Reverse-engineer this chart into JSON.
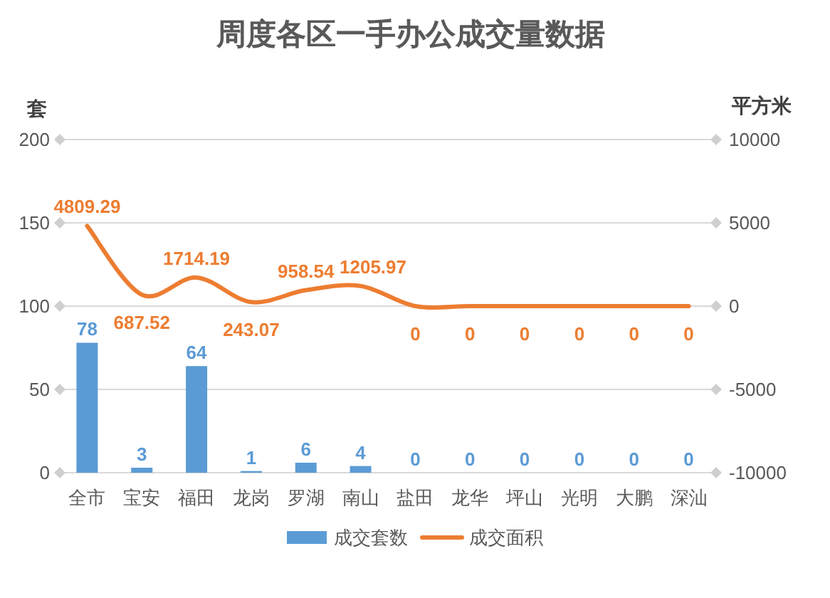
{
  "chart_data": {
    "type": "bar",
    "title": "周度各区一手办公成交量数据",
    "categories": [
      "全市",
      "宝安",
      "福田",
      "龙岗",
      "罗湖",
      "南山",
      "盐田",
      "龙华",
      "坪山",
      "光明",
      "大鹏",
      "深汕"
    ],
    "series": [
      {
        "name": "成交套数",
        "color": "#5b9bd5",
        "values": [
          78,
          3,
          64,
          1,
          6,
          4,
          0,
          0,
          0,
          0,
          0,
          0
        ]
      },
      {
        "name": "成交面积",
        "type": "line",
        "axis": "y2",
        "color": "#ed7d31",
        "values": [
          4809.29,
          687.52,
          1714.19,
          243.07,
          958.54,
          1205.97,
          0,
          0,
          0,
          0,
          0,
          0
        ]
      }
    ],
    "ylabel": "套",
    "y2label": "平方米",
    "ylim": [
      0,
      200
    ],
    "yticks": [
      0,
      50,
      100,
      150,
      200
    ],
    "y2lim": [
      -10000,
      10000
    ],
    "y2ticks": [
      -10000,
      -5000,
      0,
      5000,
      10000
    ],
    "grid": "y",
    "legend": "bottom",
    "data_labels": true
  }
}
